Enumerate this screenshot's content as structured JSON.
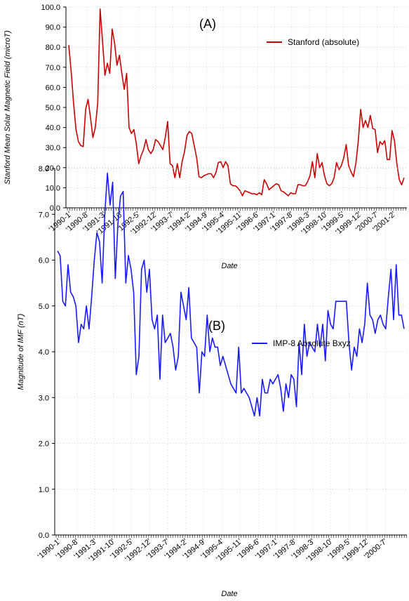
{
  "chart_data": [
    {
      "type": "line",
      "panel_label": "(A)",
      "ylabel": "Stanford Mean Solar Magnetic Field (microT)",
      "xlabel": "Date",
      "ylim": [
        0,
        100
      ],
      "yticks": [
        "0.0",
        "10.0",
        "20.0",
        "30.0",
        "40.0",
        "50.0",
        "60.0",
        "70.0",
        "80.0",
        "90.0",
        "100.0"
      ],
      "xticks": [
        "1990-1",
        "1990-8",
        "1991-3",
        "1991-10",
        "1992-5",
        "1992-12",
        "1993-7",
        "1994-2",
        "1994-9",
        "1995-4",
        "1995-11",
        "1996-6",
        "1997-1",
        "1997-8",
        "1998-3",
        "1998-10",
        "1999-5",
        "1999-12",
        "2000-7",
        "2001-2"
      ],
      "legend_position": "top-right",
      "grid": true,
      "series": [
        {
          "name": "Stanford (absolute)",
          "color": "#cc0000",
          "values": [
            81,
            68,
            52,
            39,
            33,
            31,
            30.5,
            49,
            54,
            45,
            35,
            40,
            52,
            99,
            83,
            66,
            72,
            67,
            89,
            82,
            71,
            76,
            67,
            59,
            67,
            40,
            37,
            39,
            32,
            22,
            26,
            29,
            34,
            29,
            27,
            29,
            34,
            33,
            31,
            29,
            35,
            43,
            22,
            21,
            15,
            22,
            15,
            23,
            28,
            36,
            38,
            37,
            31,
            25,
            15.5,
            15,
            16,
            16.5,
            17,
            17,
            15,
            17.5,
            22.5,
            23,
            20,
            23,
            21,
            12,
            11,
            11,
            10,
            8.5,
            6,
            8.5,
            8,
            7.5,
            7,
            7,
            6.5,
            7.5,
            6.5,
            14,
            12,
            9,
            10,
            11,
            12,
            11.5,
            8.5,
            8,
            7,
            6,
            7.5,
            7,
            7,
            11.5,
            11.5,
            11,
            11,
            13,
            16,
            23,
            15,
            27,
            20,
            22.5,
            16,
            12,
            11,
            12,
            15,
            22.5,
            19,
            21,
            25,
            31.5,
            21,
            18,
            15.5,
            22,
            33,
            49,
            40,
            43.5,
            40,
            46,
            39.5,
            39,
            27.5,
            33,
            31.5,
            33.5,
            24,
            24,
            38.5,
            33.5,
            22,
            14,
            11.5,
            15
          ]
        }
      ]
    },
    {
      "type": "line",
      "panel_label": "(B)",
      "ylabel": "Magnitude of IMF (nT)",
      "xlabel": "Date",
      "ylim": [
        0,
        8
      ],
      "yticks": [
        "0.0",
        "1.0",
        "2.0",
        "3.0",
        "4.0",
        "5.0",
        "6.0",
        "7.0",
        "8.0"
      ],
      "xticks": [
        "1990-1",
        "1990-8",
        "1991-3",
        "1991-10",
        "1992-5",
        "1992-12",
        "1993-7",
        "1994-2",
        "1994-9",
        "1995-4",
        "1995-11",
        "1996-6",
        "1997-1",
        "1997-8",
        "1998-3",
        "1998-10",
        "1999-5",
        "1999-12",
        "2000-7"
      ],
      "legend_position": "top-right",
      "grid": true,
      "series": [
        {
          "name": "IMP-8 Absolute Bxyz",
          "color": "#1a1aff",
          "values": [
            6.2,
            6.1,
            5.1,
            5.0,
            5.9,
            5.3,
            5.2,
            5.0,
            4.2,
            4.6,
            4.5,
            5.0,
            4.5,
            5.2,
            6.0,
            6.6,
            6.4,
            5.5,
            7.0,
            7.9,
            7.2,
            7.7,
            5.6,
            6.8,
            7.4,
            7.5,
            5.5,
            6.1,
            5.8,
            5.3,
            3.5,
            3.9,
            5.8,
            6.0,
            5.3,
            5.8,
            4.7,
            4.5,
            4.8,
            3.4,
            4.8,
            4.2,
            4.3,
            4.4,
            4.1,
            3.6,
            3.9,
            5.3,
            5.0,
            4.7,
            5.4,
            4.3,
            4.2,
            4.1,
            3.1,
            4.0,
            3.9,
            4.8,
            4.0,
            4.3,
            4.1,
            4.1,
            3.7,
            3.9,
            3.7,
            3.5,
            3.3,
            3.2,
            3.1,
            4.1,
            3.1,
            3.2,
            3.1,
            3.0,
            2.8,
            2.6,
            3.0,
            2.6,
            3.4,
            3.1,
            3.1,
            3.4,
            3.3,
            3.4,
            3.5,
            3.2,
            2.7,
            3.3,
            3.0,
            3.5,
            3.4,
            2.8,
            4.2,
            3.5,
            4.6,
            3.9,
            4.2,
            4.1,
            4.0,
            4.6,
            4.1,
            4.6,
            3.8,
            4.9,
            4.6,
            4.5,
            5.1,
            5.1,
            5.1,
            5.1,
            5.1,
            4.2,
            3.6,
            4.1,
            3.9,
            4.5,
            4.2,
            4.6,
            5.5,
            4.8,
            4.7,
            4.4,
            4.7,
            4.8,
            4.6,
            4.5,
            5.2,
            5.8,
            4.7,
            5.9,
            4.8,
            4.8,
            4.5
          ]
        }
      ]
    }
  ]
}
